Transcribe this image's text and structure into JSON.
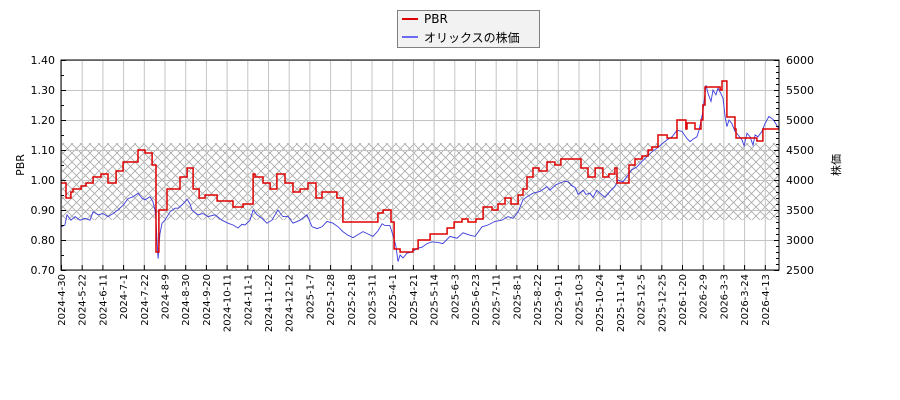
{
  "chart_data": {
    "type": "line",
    "title": "",
    "xlabel": "",
    "x_tick_labels": [
      "2024-4-30",
      "2024-5-22",
      "2024-6-11",
      "2024-7-1",
      "2024-7-22",
      "2024-8-9",
      "2024-8-30",
      "2024-9-20",
      "2024-10-11",
      "2024-11-1",
      "2024-11-22",
      "2024-12-12",
      "2025-1-7",
      "2025-1-28",
      "2025-2-18",
      "2025-3-11",
      "2025-4-1",
      "2025-4-21",
      "2025-5-14",
      "2025-6-3",
      "2025-6-23",
      "2025-7-11",
      "2025-8-1",
      "2025-8-22",
      "2025-9-11",
      "2025-10-3",
      "2025-10-24",
      "2025-11-14",
      "2025-12-5",
      "2025-12-25",
      "2026-1-20",
      "2026-2-9",
      "2026-3-3",
      "2026-3-24",
      "2026-4-13"
    ],
    "y_left": {
      "label": "PBR",
      "min": 0.7,
      "max": 1.4,
      "ticks": [
        "1.40",
        "1.30",
        "1.20",
        "1.10",
        "1.00",
        "0.90",
        "0.80",
        "0.70"
      ]
    },
    "y_right": {
      "label": "株価",
      "min": 2500,
      "max": 6000,
      "ticks": [
        "6000",
        "5500",
        "5000",
        "4500",
        "4000",
        "3500",
        "3000",
        "2500"
      ]
    },
    "grid": true,
    "legend_position": "top-center",
    "shaded_band": {
      "axis": "left",
      "min": 0.867,
      "max": 1.123,
      "pattern": "cross-hatch"
    },
    "series": [
      {
        "name": "PBR",
        "axis": "left",
        "color": "#dd0000",
        "step": true,
        "points": [
          [
            0,
            0.99
          ],
          [
            0.24,
            0.94
          ],
          [
            0.48,
            0.96
          ],
          [
            0.58,
            0.97
          ],
          [
            0.97,
            0.98
          ],
          [
            1.21,
            0.99
          ],
          [
            1.55,
            1.01
          ],
          [
            1.93,
            1.02
          ],
          [
            2.27,
            0.99
          ],
          [
            2.66,
            1.03
          ],
          [
            3.0,
            1.06
          ],
          [
            3.72,
            1.1
          ],
          [
            4.06,
            1.09
          ],
          [
            4.4,
            1.05
          ],
          [
            4.59,
            0.76
          ],
          [
            4.73,
            0.9
          ],
          [
            5.12,
            0.97
          ],
          [
            5.75,
            1.01
          ],
          [
            6.09,
            1.04
          ],
          [
            6.38,
            0.97
          ],
          [
            6.67,
            0.94
          ],
          [
            6.96,
            0.95
          ],
          [
            7.54,
            0.93
          ],
          [
            8.31,
            0.91
          ],
          [
            8.79,
            0.92
          ],
          [
            9.28,
            1.02
          ],
          [
            9.37,
            1.01
          ],
          [
            9.76,
            0.99
          ],
          [
            10.1,
            0.97
          ],
          [
            10.43,
            1.02
          ],
          [
            10.82,
            0.99
          ],
          [
            11.21,
            0.96
          ],
          [
            11.55,
            0.97
          ],
          [
            11.93,
            0.99
          ],
          [
            12.32,
            0.94
          ],
          [
            12.61,
            0.96
          ],
          [
            13.33,
            0.94
          ],
          [
            13.62,
            0.86
          ],
          [
            15.31,
            0.89
          ],
          [
            15.56,
            0.9
          ],
          [
            15.94,
            0.86
          ],
          [
            16.09,
            0.77
          ],
          [
            16.38,
            0.76
          ],
          [
            17.0,
            0.77
          ],
          [
            17.25,
            0.8
          ],
          [
            17.83,
            0.82
          ],
          [
            18.65,
            0.84
          ],
          [
            18.99,
            0.86
          ],
          [
            19.37,
            0.87
          ],
          [
            19.66,
            0.86
          ],
          [
            20.05,
            0.87
          ],
          [
            20.39,
            0.91
          ],
          [
            20.82,
            0.9
          ],
          [
            21.11,
            0.92
          ],
          [
            21.45,
            0.94
          ],
          [
            21.74,
            0.92
          ],
          [
            22.08,
            0.95
          ],
          [
            22.32,
            0.97
          ],
          [
            22.51,
            1.01
          ],
          [
            22.8,
            1.04
          ],
          [
            23.09,
            1.03
          ],
          [
            23.48,
            1.06
          ],
          [
            23.86,
            1.05
          ],
          [
            24.15,
            1.07
          ],
          [
            25.12,
            1.04
          ],
          [
            25.46,
            1.01
          ],
          [
            25.8,
            1.04
          ],
          [
            26.18,
            1.01
          ],
          [
            26.47,
            1.02
          ],
          [
            26.76,
            1.04
          ],
          [
            26.86,
            0.99
          ],
          [
            27.44,
            1.05
          ],
          [
            27.73,
            1.07
          ],
          [
            28.07,
            1.08
          ],
          [
            28.36,
            1.1
          ],
          [
            28.55,
            1.11
          ],
          [
            28.84,
            1.15
          ],
          [
            29.28,
            1.14
          ],
          [
            29.76,
            1.2
          ],
          [
            30.19,
            1.17
          ],
          [
            30.24,
            1.19
          ],
          [
            30.63,
            1.17
          ],
          [
            30.92,
            1.2
          ],
          [
            31.01,
            1.25
          ],
          [
            31.11,
            1.31
          ],
          [
            31.84,
            1.3
          ],
          [
            31.93,
            1.33
          ],
          [
            32.17,
            1.21
          ],
          [
            32.56,
            1.17
          ],
          [
            32.61,
            1.14
          ],
          [
            33.62,
            1.13
          ],
          [
            33.91,
            1.17
          ],
          [
            34.69,
            1.17
          ]
        ]
      },
      {
        "name": "オリックスの株価",
        "axis": "right",
        "color": "#3b3bdc",
        "legend_color": "#6b6bf0",
        "step": false,
        "points": [
          [
            0,
            3220
          ],
          [
            0.19,
            3250
          ],
          [
            0.29,
            3420
          ],
          [
            0.48,
            3330
          ],
          [
            0.68,
            3390
          ],
          [
            0.92,
            3330
          ],
          [
            1.16,
            3360
          ],
          [
            1.4,
            3330
          ],
          [
            1.55,
            3470
          ],
          [
            1.79,
            3420
          ],
          [
            2.03,
            3440
          ],
          [
            2.27,
            3390
          ],
          [
            2.51,
            3440
          ],
          [
            2.75,
            3500
          ],
          [
            3.0,
            3580
          ],
          [
            3.24,
            3690
          ],
          [
            3.48,
            3720
          ],
          [
            3.72,
            3780
          ],
          [
            3.91,
            3700
          ],
          [
            4.06,
            3670
          ],
          [
            4.3,
            3720
          ],
          [
            4.44,
            3640
          ],
          [
            4.54,
            3500
          ],
          [
            4.59,
            3330
          ],
          [
            4.64,
            3000
          ],
          [
            4.69,
            2690
          ],
          [
            4.78,
            3100
          ],
          [
            4.88,
            3280
          ],
          [
            5.02,
            3330
          ],
          [
            5.27,
            3470
          ],
          [
            5.51,
            3530
          ],
          [
            5.65,
            3530
          ],
          [
            5.89,
            3600
          ],
          [
            6.09,
            3680
          ],
          [
            6.23,
            3600
          ],
          [
            6.33,
            3500
          ],
          [
            6.62,
            3420
          ],
          [
            6.86,
            3440
          ],
          [
            7.1,
            3390
          ],
          [
            7.44,
            3420
          ],
          [
            7.78,
            3330
          ],
          [
            8.07,
            3280
          ],
          [
            8.31,
            3250
          ],
          [
            8.55,
            3200
          ],
          [
            8.74,
            3260
          ],
          [
            8.89,
            3250
          ],
          [
            9.13,
            3330
          ],
          [
            9.28,
            3500
          ],
          [
            9.47,
            3420
          ],
          [
            9.71,
            3360
          ],
          [
            9.95,
            3280
          ],
          [
            10.19,
            3330
          ],
          [
            10.48,
            3500
          ],
          [
            10.72,
            3390
          ],
          [
            10.97,
            3390
          ],
          [
            11.21,
            3280
          ],
          [
            11.55,
            3330
          ],
          [
            11.88,
            3420
          ],
          [
            12.13,
            3220
          ],
          [
            12.37,
            3190
          ],
          [
            12.61,
            3220
          ],
          [
            12.85,
            3310
          ],
          [
            13.14,
            3280
          ],
          [
            13.38,
            3220
          ],
          [
            13.62,
            3140
          ],
          [
            13.86,
            3080
          ],
          [
            14.11,
            3040
          ],
          [
            14.35,
            3090
          ],
          [
            14.59,
            3140
          ],
          [
            14.83,
            3100
          ],
          [
            15.07,
            3060
          ],
          [
            15.31,
            3150
          ],
          [
            15.51,
            3270
          ],
          [
            15.65,
            3240
          ],
          [
            15.89,
            3240
          ],
          [
            16.04,
            3080
          ],
          [
            16.18,
            2900
          ],
          [
            16.28,
            2640
          ],
          [
            16.38,
            2750
          ],
          [
            16.52,
            2700
          ],
          [
            16.71,
            2780
          ],
          [
            16.96,
            2800
          ],
          [
            17.2,
            2860
          ],
          [
            17.44,
            2880
          ],
          [
            17.68,
            2940
          ],
          [
            17.92,
            2970
          ],
          [
            18.21,
            2960
          ],
          [
            18.45,
            2940
          ],
          [
            18.79,
            3060
          ],
          [
            19.13,
            3030
          ],
          [
            19.42,
            3120
          ],
          [
            19.76,
            3080
          ],
          [
            20.0,
            3060
          ],
          [
            20.34,
            3220
          ],
          [
            20.63,
            3250
          ],
          [
            20.97,
            3310
          ],
          [
            21.3,
            3330
          ],
          [
            21.59,
            3390
          ],
          [
            21.84,
            3360
          ],
          [
            22.08,
            3470
          ],
          [
            22.32,
            3670
          ],
          [
            22.51,
            3720
          ],
          [
            22.8,
            3780
          ],
          [
            23.14,
            3810
          ],
          [
            23.48,
            3890
          ],
          [
            23.62,
            3830
          ],
          [
            23.91,
            3920
          ],
          [
            24.11,
            3950
          ],
          [
            24.35,
            3980
          ],
          [
            24.49,
            3970
          ],
          [
            24.69,
            3900
          ],
          [
            24.83,
            3880
          ],
          [
            24.98,
            3760
          ],
          [
            25.22,
            3830
          ],
          [
            25.36,
            3760
          ],
          [
            25.56,
            3780
          ],
          [
            25.7,
            3710
          ],
          [
            25.89,
            3830
          ],
          [
            26.04,
            3780
          ],
          [
            26.28,
            3710
          ],
          [
            26.52,
            3810
          ],
          [
            26.76,
            3890
          ],
          [
            26.91,
            4000
          ],
          [
            27.15,
            3970
          ],
          [
            27.39,
            4080
          ],
          [
            27.58,
            4170
          ],
          [
            27.83,
            4220
          ],
          [
            28.07,
            4310
          ],
          [
            28.31,
            4390
          ],
          [
            28.55,
            4470
          ],
          [
            28.79,
            4530
          ],
          [
            29.03,
            4600
          ],
          [
            29.28,
            4670
          ],
          [
            29.52,
            4720
          ],
          [
            29.76,
            4830
          ],
          [
            30.0,
            4810
          ],
          [
            30.24,
            4690
          ],
          [
            30.39,
            4640
          ],
          [
            30.53,
            4680
          ],
          [
            30.72,
            4720
          ],
          [
            30.82,
            4830
          ],
          [
            31.01,
            5140
          ],
          [
            31.16,
            5580
          ],
          [
            31.26,
            5440
          ],
          [
            31.4,
            5310
          ],
          [
            31.5,
            5500
          ],
          [
            31.64,
            5420
          ],
          [
            31.74,
            5530
          ],
          [
            31.88,
            5440
          ],
          [
            31.98,
            5360
          ],
          [
            32.08,
            5060
          ],
          [
            32.17,
            4890
          ],
          [
            32.27,
            5000
          ],
          [
            32.41,
            4940
          ],
          [
            32.56,
            4810
          ],
          [
            32.71,
            4750
          ],
          [
            32.9,
            4670
          ],
          [
            33.0,
            4570
          ],
          [
            33.14,
            4780
          ],
          [
            33.29,
            4720
          ],
          [
            33.43,
            4580
          ],
          [
            33.53,
            4750
          ],
          [
            33.67,
            4720
          ],
          [
            33.86,
            4810
          ],
          [
            34.01,
            4940
          ],
          [
            34.2,
            5060
          ],
          [
            34.4,
            5010
          ],
          [
            34.64,
            4880
          ],
          [
            34.69,
            4850
          ]
        ]
      }
    ]
  }
}
